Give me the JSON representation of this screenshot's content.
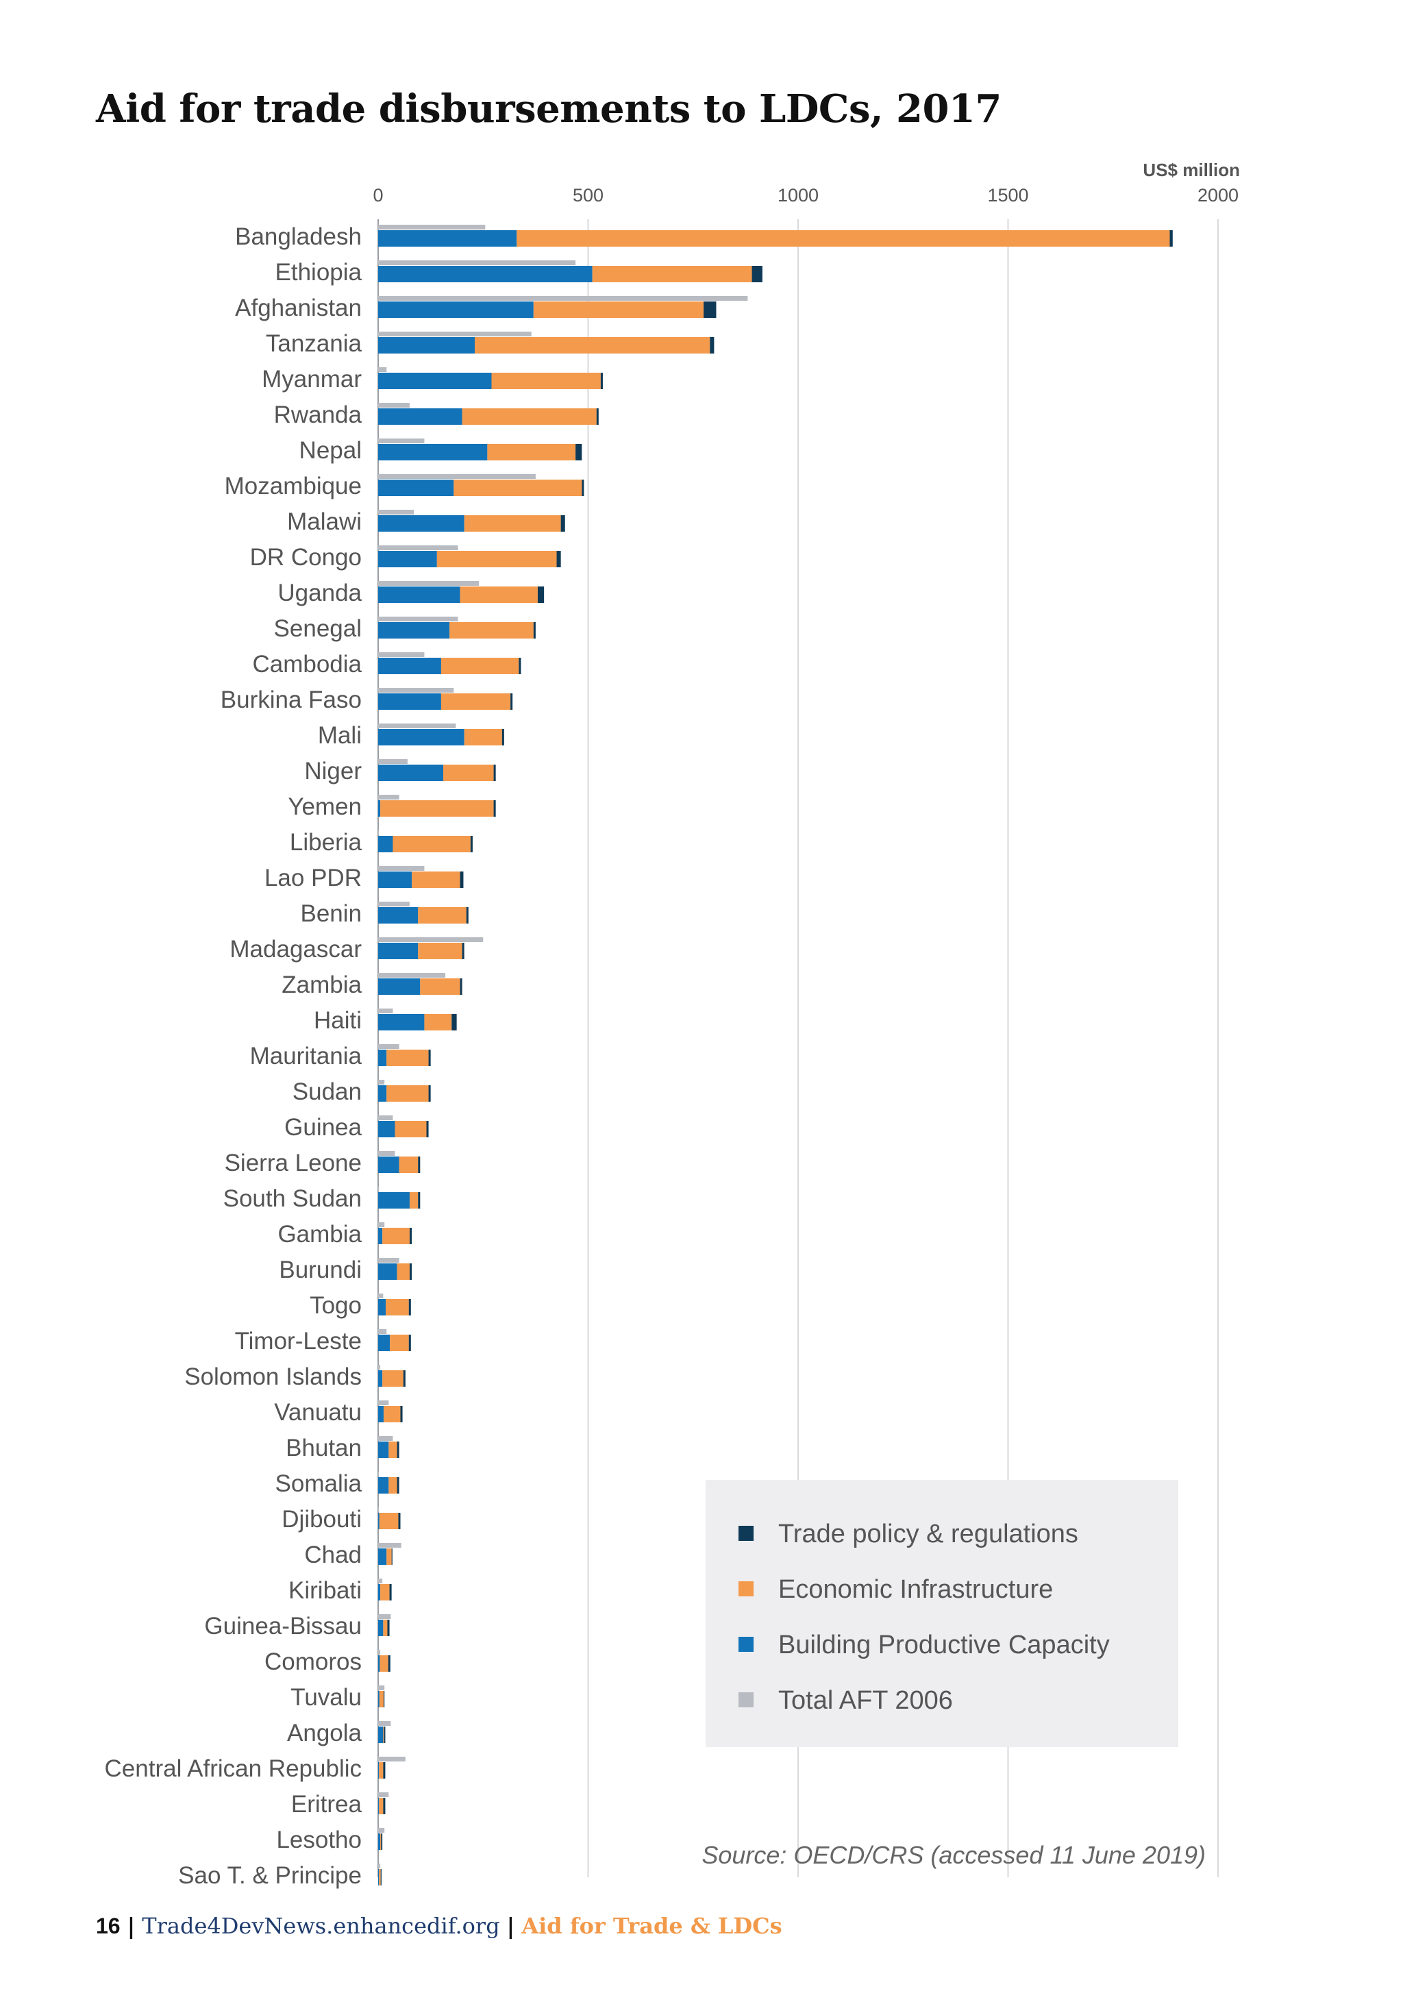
{
  "chart_data": {
    "type": "bar",
    "orientation": "horizontal",
    "stacked": true,
    "title": "Aid for trade disbursements to LDCs, 2017",
    "unit_label": "US$ million",
    "xlim": [
      0,
      2000
    ],
    "x_ticks": [
      0,
      500,
      1000,
      1500,
      2000
    ],
    "grid": true,
    "categories": [
      "Bangladesh",
      "Ethiopia",
      "Afghanistan",
      "Tanzania",
      "Myanmar",
      "Rwanda",
      "Nepal",
      "Mozambique",
      "Malawi",
      "DR Congo",
      "Uganda",
      "Senegal",
      "Cambodia",
      "Burkina Faso",
      "Mali",
      "Niger",
      "Yemen",
      "Liberia",
      "Lao PDR",
      "Benin",
      "Madagascar",
      "Zambia",
      "Haiti",
      "Mauritania",
      "Sudan",
      "Guinea",
      "Sierra Leone",
      "South Sudan",
      "Gambia",
      "Burundi",
      "Togo",
      "Timor-Leste",
      "Solomon Islands",
      "Vanuatu",
      "Bhutan",
      "Somalia",
      "Djibouti",
      "Chad",
      "Kiribati",
      "Guinea-Bissau",
      "Comoros",
      "Tuvalu",
      "Angola",
      "Central African Republic",
      "Eritrea",
      "Lesotho",
      "Sao T. & Principe"
    ],
    "series": [
      {
        "name": "Building Productive Capacity",
        "color": "#1273b9",
        "values": [
          330,
          510,
          370,
          230,
          270,
          200,
          260,
          180,
          205,
          140,
          195,
          170,
          150,
          150,
          205,
          155,
          5,
          35,
          80,
          95,
          95,
          100,
          110,
          20,
          20,
          40,
          50,
          75,
          10,
          45,
          18,
          28,
          10,
          13,
          25,
          25,
          3,
          20,
          5,
          12,
          4,
          3,
          12,
          2,
          2,
          5,
          2
        ]
      },
      {
        "name": "Economic Infrastructure",
        "color": "#f49a4c",
        "values": [
          1555,
          380,
          405,
          560,
          260,
          320,
          210,
          305,
          230,
          285,
          185,
          200,
          185,
          165,
          90,
          120,
          270,
          185,
          115,
          115,
          105,
          95,
          65,
          100,
          100,
          75,
          45,
          20,
          65,
          30,
          55,
          45,
          50,
          40,
          20,
          20,
          45,
          12,
          22,
          10,
          20,
          10,
          2,
          10,
          10,
          2,
          4
        ]
      },
      {
        "name": "Trade policy & regulations",
        "color": "#0e3a57",
        "values": [
          7,
          25,
          30,
          10,
          5,
          5,
          15,
          5,
          10,
          10,
          15,
          5,
          5,
          5,
          5,
          5,
          5,
          5,
          8,
          5,
          5,
          5,
          12,
          5,
          5,
          5,
          5,
          5,
          5,
          5,
          5,
          5,
          5,
          5,
          5,
          5,
          5,
          2,
          5,
          5,
          5,
          2,
          3,
          5,
          5,
          3,
          2
        ]
      },
      {
        "name": "Total AFT 2006",
        "color": "#b8bcc2",
        "values": [
          255,
          470,
          880,
          365,
          20,
          75,
          110,
          375,
          85,
          190,
          240,
          190,
          110,
          180,
          185,
          70,
          50,
          2,
          110,
          75,
          250,
          160,
          35,
          50,
          15,
          35,
          40,
          2,
          15,
          50,
          12,
          20,
          5,
          25,
          35,
          2,
          2,
          55,
          10,
          30,
          5,
          15,
          30,
          65,
          25,
          15,
          5
        ]
      }
    ],
    "legend": {
      "position": "bottom-right",
      "entries": [
        "Trade policy & regulations",
        "Economic Infrastructure",
        "Building Productive Capacity",
        "Total AFT 2006"
      ]
    },
    "source": "Source: OECD/CRS (accessed 11 June 2019)"
  },
  "footer": {
    "page_number": "16",
    "separator": "|",
    "site": "Trade4DevNews.enhancedif.org",
    "section": "Aid for Trade & LDCs"
  }
}
